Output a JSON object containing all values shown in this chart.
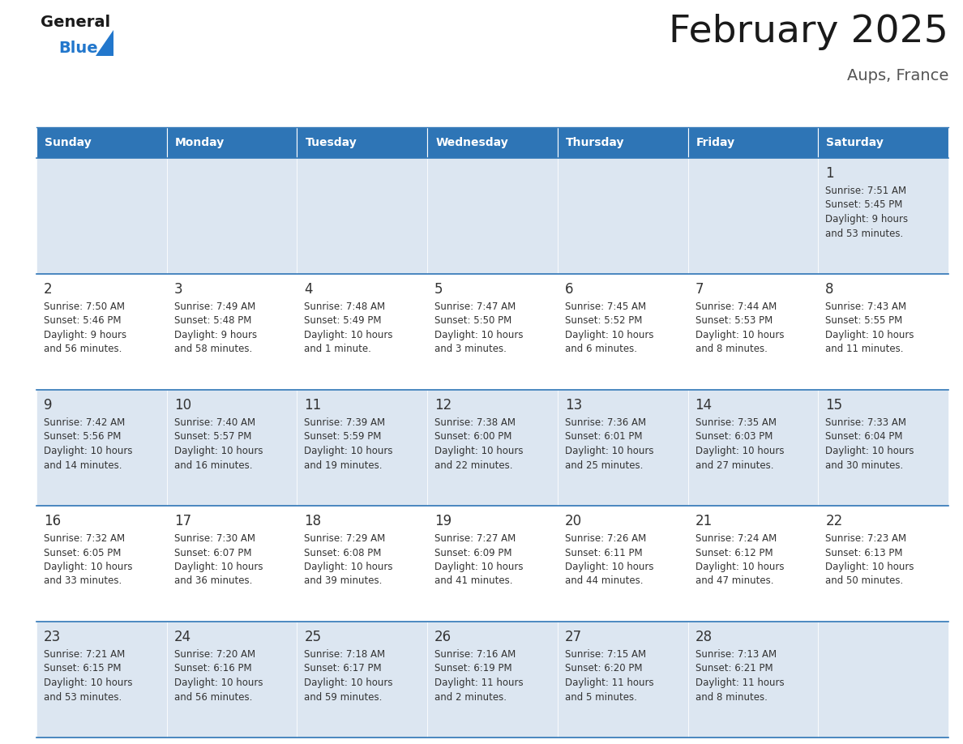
{
  "title": "February 2025",
  "subtitle": "Aups, France",
  "days_of_week": [
    "Sunday",
    "Monday",
    "Tuesday",
    "Wednesday",
    "Thursday",
    "Friday",
    "Saturday"
  ],
  "header_bg": "#2e75b6",
  "header_text": "#ffffff",
  "row_bg_odd": "#dce6f1",
  "row_bg_even": "#ffffff",
  "cell_text": "#333333",
  "divider_color": "#2e75b6",
  "title_color": "#1a1a1a",
  "subtitle_color": "#555555",
  "logo_general_color": "#1a1a1a",
  "logo_blue_color": "#2277cc",
  "calendar_data": [
    [
      null,
      null,
      null,
      null,
      null,
      null,
      {
        "day": "1",
        "sunrise": "7:51 AM",
        "sunset": "5:45 PM",
        "daylight1": "9 hours",
        "daylight2": "and 53 minutes."
      }
    ],
    [
      {
        "day": "2",
        "sunrise": "7:50 AM",
        "sunset": "5:46 PM",
        "daylight1": "9 hours",
        "daylight2": "and 56 minutes."
      },
      {
        "day": "3",
        "sunrise": "7:49 AM",
        "sunset": "5:48 PM",
        "daylight1": "9 hours",
        "daylight2": "and 58 minutes."
      },
      {
        "day": "4",
        "sunrise": "7:48 AM",
        "sunset": "5:49 PM",
        "daylight1": "10 hours",
        "daylight2": "and 1 minute."
      },
      {
        "day": "5",
        "sunrise": "7:47 AM",
        "sunset": "5:50 PM",
        "daylight1": "10 hours",
        "daylight2": "and 3 minutes."
      },
      {
        "day": "6",
        "sunrise": "7:45 AM",
        "sunset": "5:52 PM",
        "daylight1": "10 hours",
        "daylight2": "and 6 minutes."
      },
      {
        "day": "7",
        "sunrise": "7:44 AM",
        "sunset": "5:53 PM",
        "daylight1": "10 hours",
        "daylight2": "and 8 minutes."
      },
      {
        "day": "8",
        "sunrise": "7:43 AM",
        "sunset": "5:55 PM",
        "daylight1": "10 hours",
        "daylight2": "and 11 minutes."
      }
    ],
    [
      {
        "day": "9",
        "sunrise": "7:42 AM",
        "sunset": "5:56 PM",
        "daylight1": "10 hours",
        "daylight2": "and 14 minutes."
      },
      {
        "day": "10",
        "sunrise": "7:40 AM",
        "sunset": "5:57 PM",
        "daylight1": "10 hours",
        "daylight2": "and 16 minutes."
      },
      {
        "day": "11",
        "sunrise": "7:39 AM",
        "sunset": "5:59 PM",
        "daylight1": "10 hours",
        "daylight2": "and 19 minutes."
      },
      {
        "day": "12",
        "sunrise": "7:38 AM",
        "sunset": "6:00 PM",
        "daylight1": "10 hours",
        "daylight2": "and 22 minutes."
      },
      {
        "day": "13",
        "sunrise": "7:36 AM",
        "sunset": "6:01 PM",
        "daylight1": "10 hours",
        "daylight2": "and 25 minutes."
      },
      {
        "day": "14",
        "sunrise": "7:35 AM",
        "sunset": "6:03 PM",
        "daylight1": "10 hours",
        "daylight2": "and 27 minutes."
      },
      {
        "day": "15",
        "sunrise": "7:33 AM",
        "sunset": "6:04 PM",
        "daylight1": "10 hours",
        "daylight2": "and 30 minutes."
      }
    ],
    [
      {
        "day": "16",
        "sunrise": "7:32 AM",
        "sunset": "6:05 PM",
        "daylight1": "10 hours",
        "daylight2": "and 33 minutes."
      },
      {
        "day": "17",
        "sunrise": "7:30 AM",
        "sunset": "6:07 PM",
        "daylight1": "10 hours",
        "daylight2": "and 36 minutes."
      },
      {
        "day": "18",
        "sunrise": "7:29 AM",
        "sunset": "6:08 PM",
        "daylight1": "10 hours",
        "daylight2": "and 39 minutes."
      },
      {
        "day": "19",
        "sunrise": "7:27 AM",
        "sunset": "6:09 PM",
        "daylight1": "10 hours",
        "daylight2": "and 41 minutes."
      },
      {
        "day": "20",
        "sunrise": "7:26 AM",
        "sunset": "6:11 PM",
        "daylight1": "10 hours",
        "daylight2": "and 44 minutes."
      },
      {
        "day": "21",
        "sunrise": "7:24 AM",
        "sunset": "6:12 PM",
        "daylight1": "10 hours",
        "daylight2": "and 47 minutes."
      },
      {
        "day": "22",
        "sunrise": "7:23 AM",
        "sunset": "6:13 PM",
        "daylight1": "10 hours",
        "daylight2": "and 50 minutes."
      }
    ],
    [
      {
        "day": "23",
        "sunrise": "7:21 AM",
        "sunset": "6:15 PM",
        "daylight1": "10 hours",
        "daylight2": "and 53 minutes."
      },
      {
        "day": "24",
        "sunrise": "7:20 AM",
        "sunset": "6:16 PM",
        "daylight1": "10 hours",
        "daylight2": "and 56 minutes."
      },
      {
        "day": "25",
        "sunrise": "7:18 AM",
        "sunset": "6:17 PM",
        "daylight1": "10 hours",
        "daylight2": "and 59 minutes."
      },
      {
        "day": "26",
        "sunrise": "7:16 AM",
        "sunset": "6:19 PM",
        "daylight1": "11 hours",
        "daylight2": "and 2 minutes."
      },
      {
        "day": "27",
        "sunrise": "7:15 AM",
        "sunset": "6:20 PM",
        "daylight1": "11 hours",
        "daylight2": "and 5 minutes."
      },
      {
        "day": "28",
        "sunrise": "7:13 AM",
        "sunset": "6:21 PM",
        "daylight1": "11 hours",
        "daylight2": "and 8 minutes."
      },
      null
    ]
  ]
}
